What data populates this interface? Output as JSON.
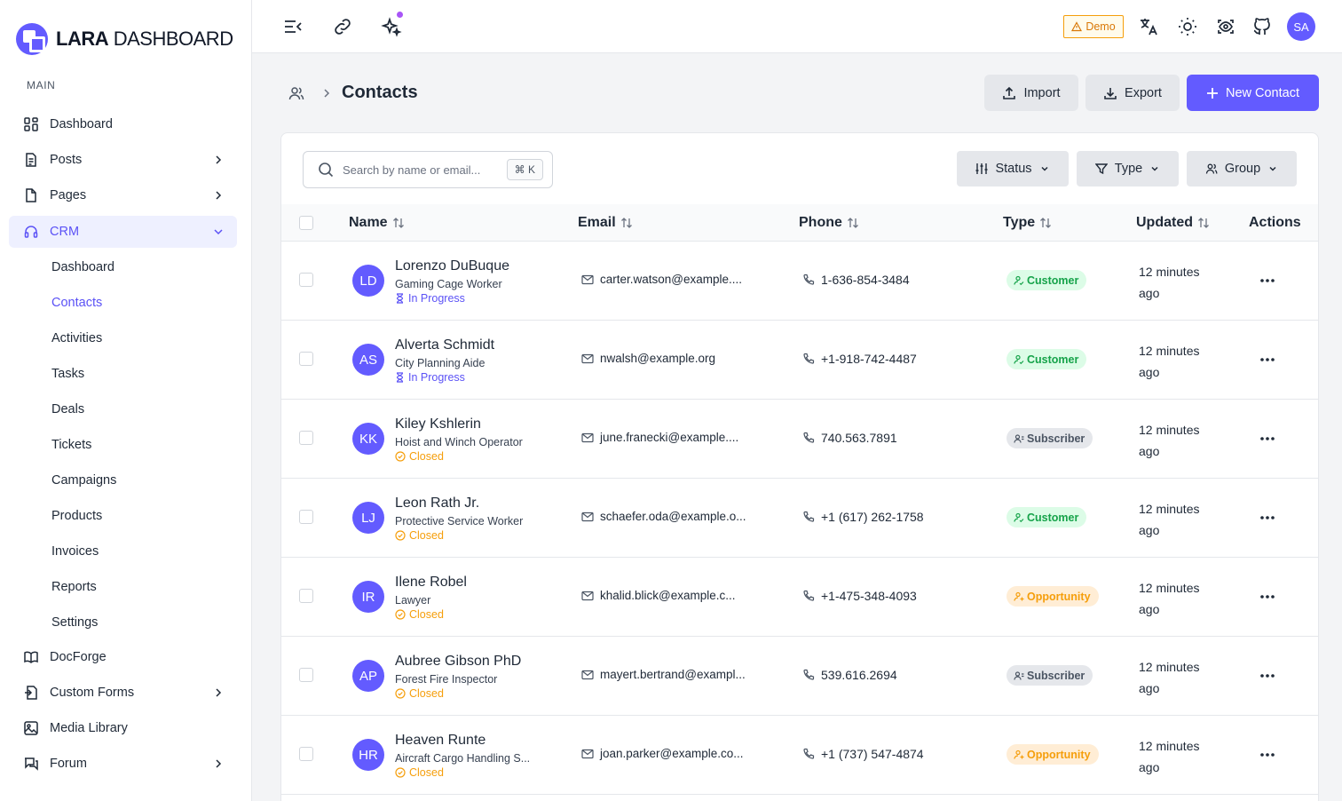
{
  "brand": {
    "name_bold": "LARA",
    "name_rest": " DASHBOARD"
  },
  "sidebar": {
    "section": "MAIN",
    "items": [
      {
        "label": "Dashboard",
        "icon": "grid-icon"
      },
      {
        "label": "Posts",
        "icon": "document-icon"
      },
      {
        "label": "Pages",
        "icon": "file-icon"
      },
      {
        "label": "CRM",
        "icon": "headset-icon"
      },
      {
        "label": "DocForge",
        "icon": "book-icon"
      },
      {
        "label": "Custom Forms",
        "icon": "form-icon"
      },
      {
        "label": "Media Library",
        "icon": "image-icon"
      },
      {
        "label": "Forum",
        "icon": "chat-icon"
      }
    ],
    "crm_sub": [
      "Dashboard",
      "Contacts",
      "Activities",
      "Tasks",
      "Deals",
      "Tickets",
      "Campaigns",
      "Products",
      "Invoices",
      "Reports",
      "Settings"
    ]
  },
  "topbar": {
    "demo_label": "Demo",
    "avatar_initials": "SA"
  },
  "page": {
    "title": "Contacts",
    "import_label": "Import",
    "export_label": "Export",
    "new_label": "New Contact"
  },
  "toolbar": {
    "search_placeholder": "Search by name or email...",
    "search_shortcut": "⌘ K",
    "filter_status": "Status",
    "filter_type": "Type",
    "filter_group": "Group"
  },
  "table": {
    "headers": {
      "name": "Name",
      "email": "Email",
      "phone": "Phone",
      "type": "Type",
      "updated": "Updated",
      "actions": "Actions"
    },
    "rows": [
      {
        "initials": "LD",
        "name": "Lorenzo DuBuque",
        "job": "Gaming Cage Worker",
        "status": "In Progress",
        "email": "carter.watson@example....",
        "phone": "1-636-854-3484",
        "type": "Customer",
        "updated_1": "12 minutes",
        "updated_2": "ago"
      },
      {
        "initials": "AS",
        "name": "Alverta Schmidt",
        "job": "City Planning Aide",
        "status": "In Progress",
        "email": "nwalsh@example.org",
        "phone": "+1-918-742-4487",
        "type": "Customer",
        "updated_1": "12 minutes",
        "updated_2": "ago"
      },
      {
        "initials": "KK",
        "name": "Kiley Kshlerin",
        "job": "Hoist and Winch Operator",
        "status": "Closed",
        "email": "june.franecki@example....",
        "phone": "740.563.7891",
        "type": "Subscriber",
        "updated_1": "12 minutes",
        "updated_2": "ago"
      },
      {
        "initials": "LJ",
        "name": "Leon Rath Jr.",
        "job": "Protective Service Worker",
        "status": "Closed",
        "email": "schaefer.oda@example.o...",
        "phone": "+1 (617) 262-1758",
        "type": "Customer",
        "updated_1": "12 minutes",
        "updated_2": "ago"
      },
      {
        "initials": "IR",
        "name": "Ilene Robel",
        "job": "Lawyer",
        "status": "Closed",
        "email": "khalid.blick@example.c...",
        "phone": "+1-475-348-4093",
        "type": "Opportunity",
        "updated_1": "12 minutes",
        "updated_2": "ago"
      },
      {
        "initials": "AP",
        "name": "Aubree Gibson PhD",
        "job": "Forest Fire Inspector",
        "status": "Closed",
        "email": "mayert.bertrand@exampl...",
        "phone": "539.616.2694",
        "type": "Subscriber",
        "updated_1": "12 minutes",
        "updated_2": "ago"
      },
      {
        "initials": "HR",
        "name": "Heaven Runte",
        "job": "Aircraft Cargo Handling S...",
        "status": "Closed",
        "email": "joan.parker@example.co...",
        "phone": "+1 (737) 547-4874",
        "type": "Opportunity",
        "updated_1": "12 minutes",
        "updated_2": "ago"
      }
    ]
  },
  "colors": {
    "accent": "#635bff",
    "customer": "#16a34a",
    "opportunity": "#f59e0b",
    "subscriber": "#4b5563"
  }
}
